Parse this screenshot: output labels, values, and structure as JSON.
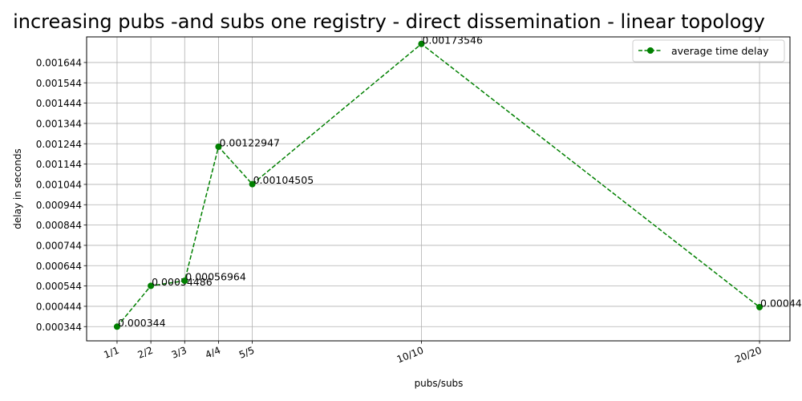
{
  "chart_data": {
    "type": "line",
    "title": "increasing pubs -and subs  one registry - direct dissemination - linear topology",
    "xlabel": "pubs/subs",
    "ylabel": "delay in seconds",
    "x": [
      1,
      2,
      3,
      4,
      5,
      10,
      20
    ],
    "categories": [
      "1/1",
      "2/2",
      "3/3",
      "4/4",
      "5/5",
      "10/10",
      "20/20"
    ],
    "xlim": [
      0.1,
      20.9
    ],
    "ylim": [
      0.000274,
      0.00177
    ],
    "yticks": [
      "0.000344",
      "0.000444",
      "0.000544",
      "0.000644",
      "0.000744",
      "0.000844",
      "0.000944",
      "0.001044",
      "0.001144",
      "0.001244",
      "0.001344",
      "0.001444",
      "0.001544",
      "0.001644"
    ],
    "grid": true,
    "legend_position": "top-right",
    "series": [
      {
        "name": "average time delay",
        "color": "#008000",
        "line_style": "dashed",
        "marker": "circle",
        "values": [
          0.000344,
          0.00054486,
          0.00056964,
          0.00122947,
          0.00104505,
          0.00173546,
          0.00044
        ],
        "labels": [
          "0.000344",
          "0.00054486",
          "0.00056964",
          "0.00122947",
          "0.00104505",
          "0.00173546",
          "0.00044"
        ]
      }
    ]
  }
}
